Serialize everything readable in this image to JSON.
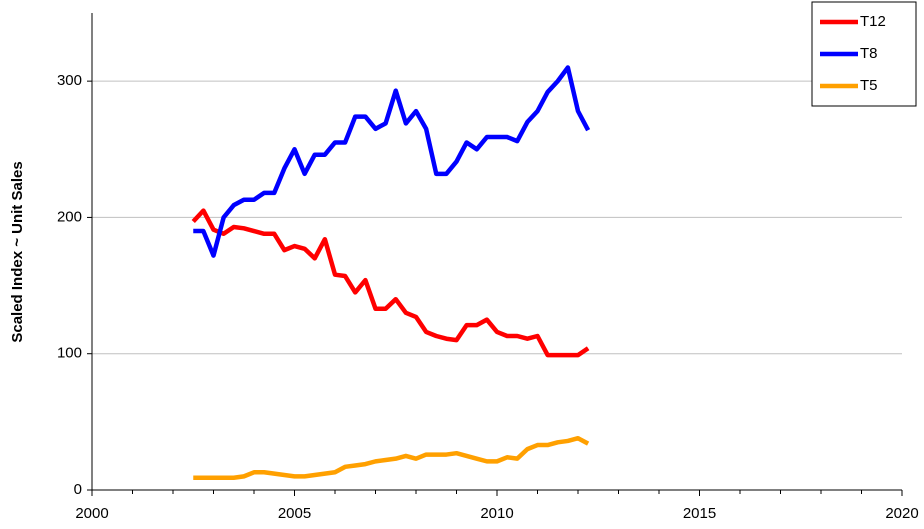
{
  "chart_data": {
    "type": "line",
    "ylabel": "Scaled Index ~ Unit Sales",
    "x": [
      2002.5,
      2002.75,
      2003,
      2003.25,
      2003.5,
      2003.75,
      2004,
      2004.25,
      2004.5,
      2004.75,
      2005,
      2005.25,
      2005.5,
      2005.75,
      2006,
      2006.25,
      2006.5,
      2006.75,
      2007,
      2007.25,
      2007.5,
      2007.75,
      2008,
      2008.25,
      2008.5,
      2008.75,
      2009,
      2009.25,
      2009.5,
      2009.75,
      2010,
      2010.25,
      2010.5,
      2010.75,
      2011,
      2011.25,
      2011.5,
      2011.75,
      2012,
      2012.25
    ],
    "series": [
      {
        "name": "T12",
        "color": "#ff0000",
        "values": [
          197,
          205,
          191,
          188,
          193,
          192,
          190,
          188,
          188,
          176,
          179,
          177,
          170,
          184,
          158,
          157,
          145,
          154,
          133,
          133,
          140,
          130,
          127,
          116,
          113,
          111,
          110,
          121,
          121,
          125,
          116,
          113,
          113,
          111,
          113,
          99,
          99,
          99,
          99,
          104
        ]
      },
      {
        "name": "T8",
        "color": "#0000ff",
        "values": [
          190,
          190,
          172,
          200,
          209,
          213,
          213,
          218,
          218,
          236,
          250,
          232,
          246,
          246,
          255,
          255,
          274,
          274,
          265,
          269,
          293,
          269,
          278,
          265,
          232,
          232,
          241,
          255,
          250,
          259,
          259,
          259,
          256,
          270,
          278,
          292,
          300,
          310,
          278,
          264
        ]
      },
      {
        "name": "T5",
        "color": "#ffa000",
        "values": [
          9,
          9,
          9,
          9,
          9,
          10,
          13,
          13,
          12,
          11,
          10,
          10,
          11,
          12,
          13,
          17,
          18,
          19,
          21,
          22,
          23,
          25,
          23,
          26,
          26,
          26,
          27,
          25,
          23,
          21,
          21,
          24,
          23,
          30,
          33,
          33,
          35,
          36,
          38,
          34
        ]
      }
    ],
    "xlim": [
      2000,
      2020
    ],
    "xticks": [
      2000,
      2005,
      2010,
      2015,
      2020
    ],
    "xminorticks": [
      2001,
      2002,
      2003,
      2004,
      2006,
      2007,
      2008,
      2009,
      2011,
      2012,
      2013,
      2014,
      2016,
      2017,
      2018,
      2019
    ],
    "ylim": [
      0,
      350
    ],
    "yticks": [
      0,
      100,
      200,
      300
    ],
    "grid": true,
    "legend": "upper right"
  }
}
